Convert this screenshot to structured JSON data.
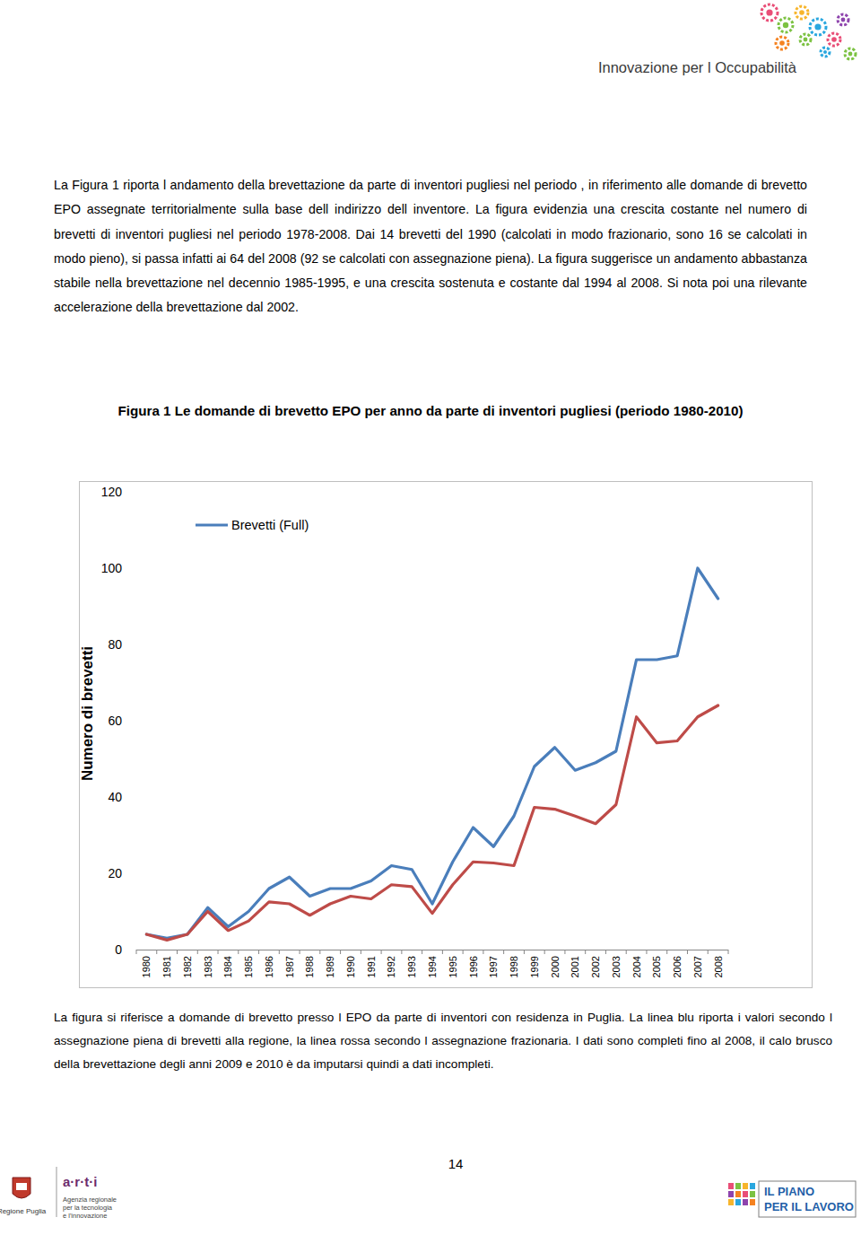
{
  "header": {
    "title": "Innovazione per l Occupabilità"
  },
  "paragraphs": [
    "La Figura 1 riporta l andamento della brevettazione da parte di inventori pugliesi nel periodo , in riferimento alle domande di brevetto EPO assegnate territorialmente sulla base dell indirizzo dell inventore. La figura evidenzia una crescita costante nel numero di brevetti di inventori pugliesi nel periodo 1978-2008. Dai 14 brevetti del 1990 (calcolati in modo frazionario, sono 16 se calcolati in modo pieno), si passa infatti ai 64 del 2008 (92 se calcolati con assegnazione piena). La figura suggerisce un andamento abbastanza stabile nella brevettazione nel decennio 1985-1995, e una crescita sostenuta e costante dal 1994 al 2008. Si nota poi una rilevante accelerazione della brevettazione dal 2002."
  ],
  "figure": {
    "title": "Figura 1 Le domande di brevetto EPO per anno da parte di inventori pugliesi (periodo 1980-2010)",
    "caption": "La figura si riferisce a domande di brevetto presso l EPO da parte di inventori con residenza in Puglia. La linea blu riporta i valori secondo l assegnazione piena di brevetti alla regione, la linea rossa secondo l assegnazione frazionaria. I dati sono completi fino al 2008, il calo brusco della brevettazione degli anni 2009 e 2010 è da imputarsi quindi a dati incompleti."
  },
  "chart_data": {
    "type": "line",
    "y_label": "Numero di brevetti",
    "categories": [
      "1980",
      "1981",
      "1982",
      "1983",
      "1984",
      "1985",
      "1986",
      "1987",
      "1988",
      "1989",
      "1990",
      "1991",
      "1992",
      "1993",
      "1994",
      "1995",
      "1996",
      "1997",
      "1998",
      "1999",
      "2000",
      "2001",
      "2002",
      "2003",
      "2004",
      "2005",
      "2006",
      "2007",
      "2008"
    ],
    "series": [
      {
        "name": "Brevetti (Full)",
        "color": "#4a7ebb",
        "values": [
          4,
          3,
          4,
          11,
          6,
          10,
          16,
          19,
          14,
          16,
          16,
          18,
          22,
          21,
          12,
          23,
          32,
          27,
          35,
          48,
          53,
          47,
          49,
          52,
          76,
          76,
          77,
          100,
          92
        ]
      },
      {
        "color": "#be4b48",
        "values": [
          4,
          2.5,
          4,
          10,
          5,
          7.5,
          12.5,
          12,
          9,
          12,
          14,
          13.3,
          17,
          16.5,
          9.5,
          17,
          23,
          22.7,
          22,
          37.3,
          36.8,
          35,
          33,
          38,
          61,
          54.2,
          54.7,
          61,
          64
        ]
      }
    ],
    "ylim": [
      0,
      120
    ],
    "yticks": [
      0,
      20,
      40,
      60,
      80,
      100,
      120
    ],
    "grid": false,
    "legend": "top-left"
  },
  "page_number": "14",
  "footer": {
    "left_logo": "Regione Puglia",
    "arti": [
      "a·r·t·i",
      "Agenzia regionale",
      "per la tecnologia",
      "e l'innovazione"
    ],
    "right_logo": [
      "IL PIANO",
      "PER IL LAVORO"
    ]
  }
}
